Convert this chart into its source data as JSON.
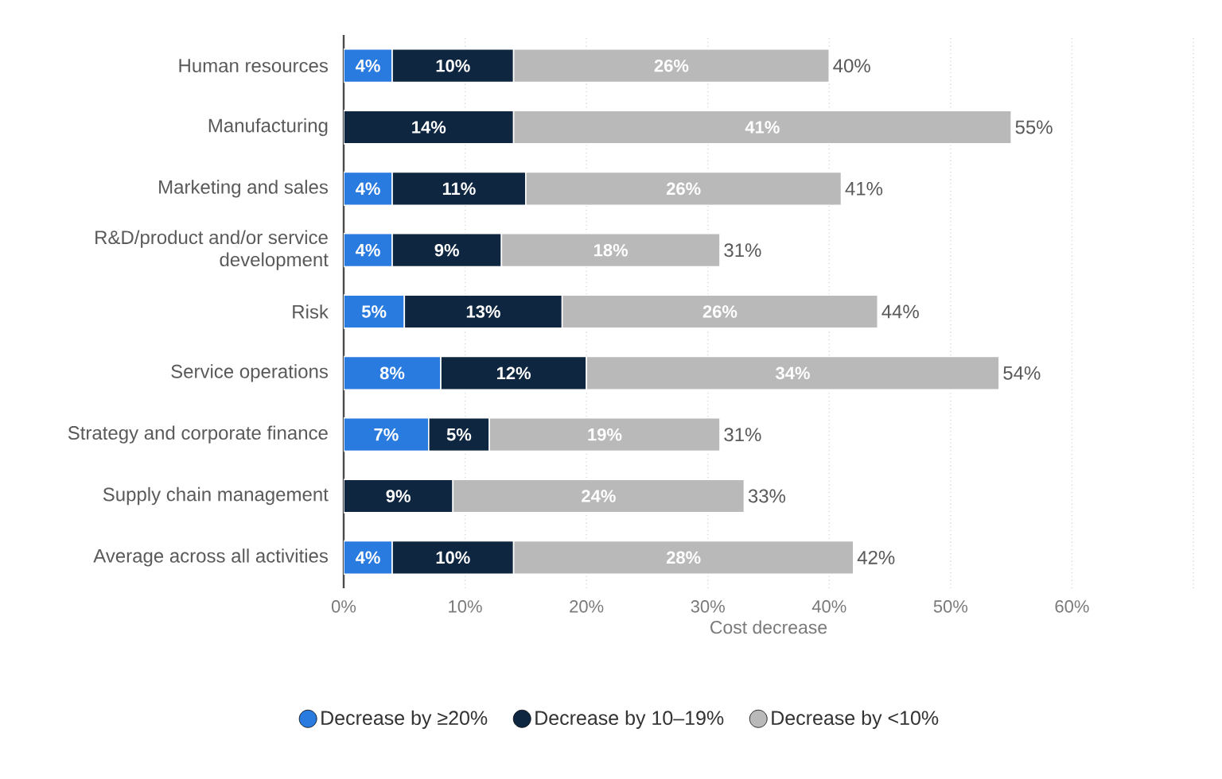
{
  "chart_data": {
    "type": "bar",
    "orientation": "horizontal",
    "stacked": true,
    "categories": [
      "Human resources",
      "Manufacturing",
      "Marketing and sales",
      "R&D/product and/or service development",
      "Risk",
      "Service operations",
      "Strategy and corporate finance",
      "Supply chain management",
      "Average across all activities"
    ],
    "series": [
      {
        "name": "Decrease by ≥20%",
        "color": "#2a7be0",
        "values": [
          4,
          null,
          4,
          4,
          5,
          8,
          7,
          null,
          4
        ],
        "value_labels": [
          "4%",
          null,
          "4%",
          "4%",
          "5%",
          "8%",
          "7%",
          null,
          "4%"
        ]
      },
      {
        "name": "Decrease by 10–19%",
        "color": "#0f2640",
        "values": [
          10,
          14,
          11,
          9,
          13,
          12,
          5,
          9,
          10
        ],
        "value_labels": [
          "10%",
          "14%",
          "11%",
          "9%",
          "13%",
          "12%",
          "5%",
          "9%",
          "10%"
        ]
      },
      {
        "name": "Decrease by <10%",
        "color": "#b9b9b9",
        "values": [
          26,
          41,
          26,
          18,
          26,
          34,
          19,
          24,
          28
        ],
        "value_labels": [
          "26%",
          "41%",
          "26%",
          "18%",
          "26%",
          "34%",
          "19%",
          "24%",
          "28%"
        ]
      }
    ],
    "totals": [
      "40%",
      "55%",
      "41%",
      "31%",
      "44%",
      "54%",
      "31%",
      "33%",
      "42%"
    ],
    "xlabel": "Cost decrease",
    "xlim": [
      0,
      70
    ],
    "xticks": [
      {
        "value": 0,
        "label": "0%"
      },
      {
        "value": 10,
        "label": "10%"
      },
      {
        "value": 20,
        "label": "20%"
      },
      {
        "value": 30,
        "label": "30%"
      },
      {
        "value": 40,
        "label": "40%"
      },
      {
        "value": 50,
        "label": "50%"
      },
      {
        "value": 60,
        "label": "60%"
      },
      {
        "value": 70,
        "label": null
      }
    ],
    "grid": "x",
    "legend": "bottom"
  }
}
